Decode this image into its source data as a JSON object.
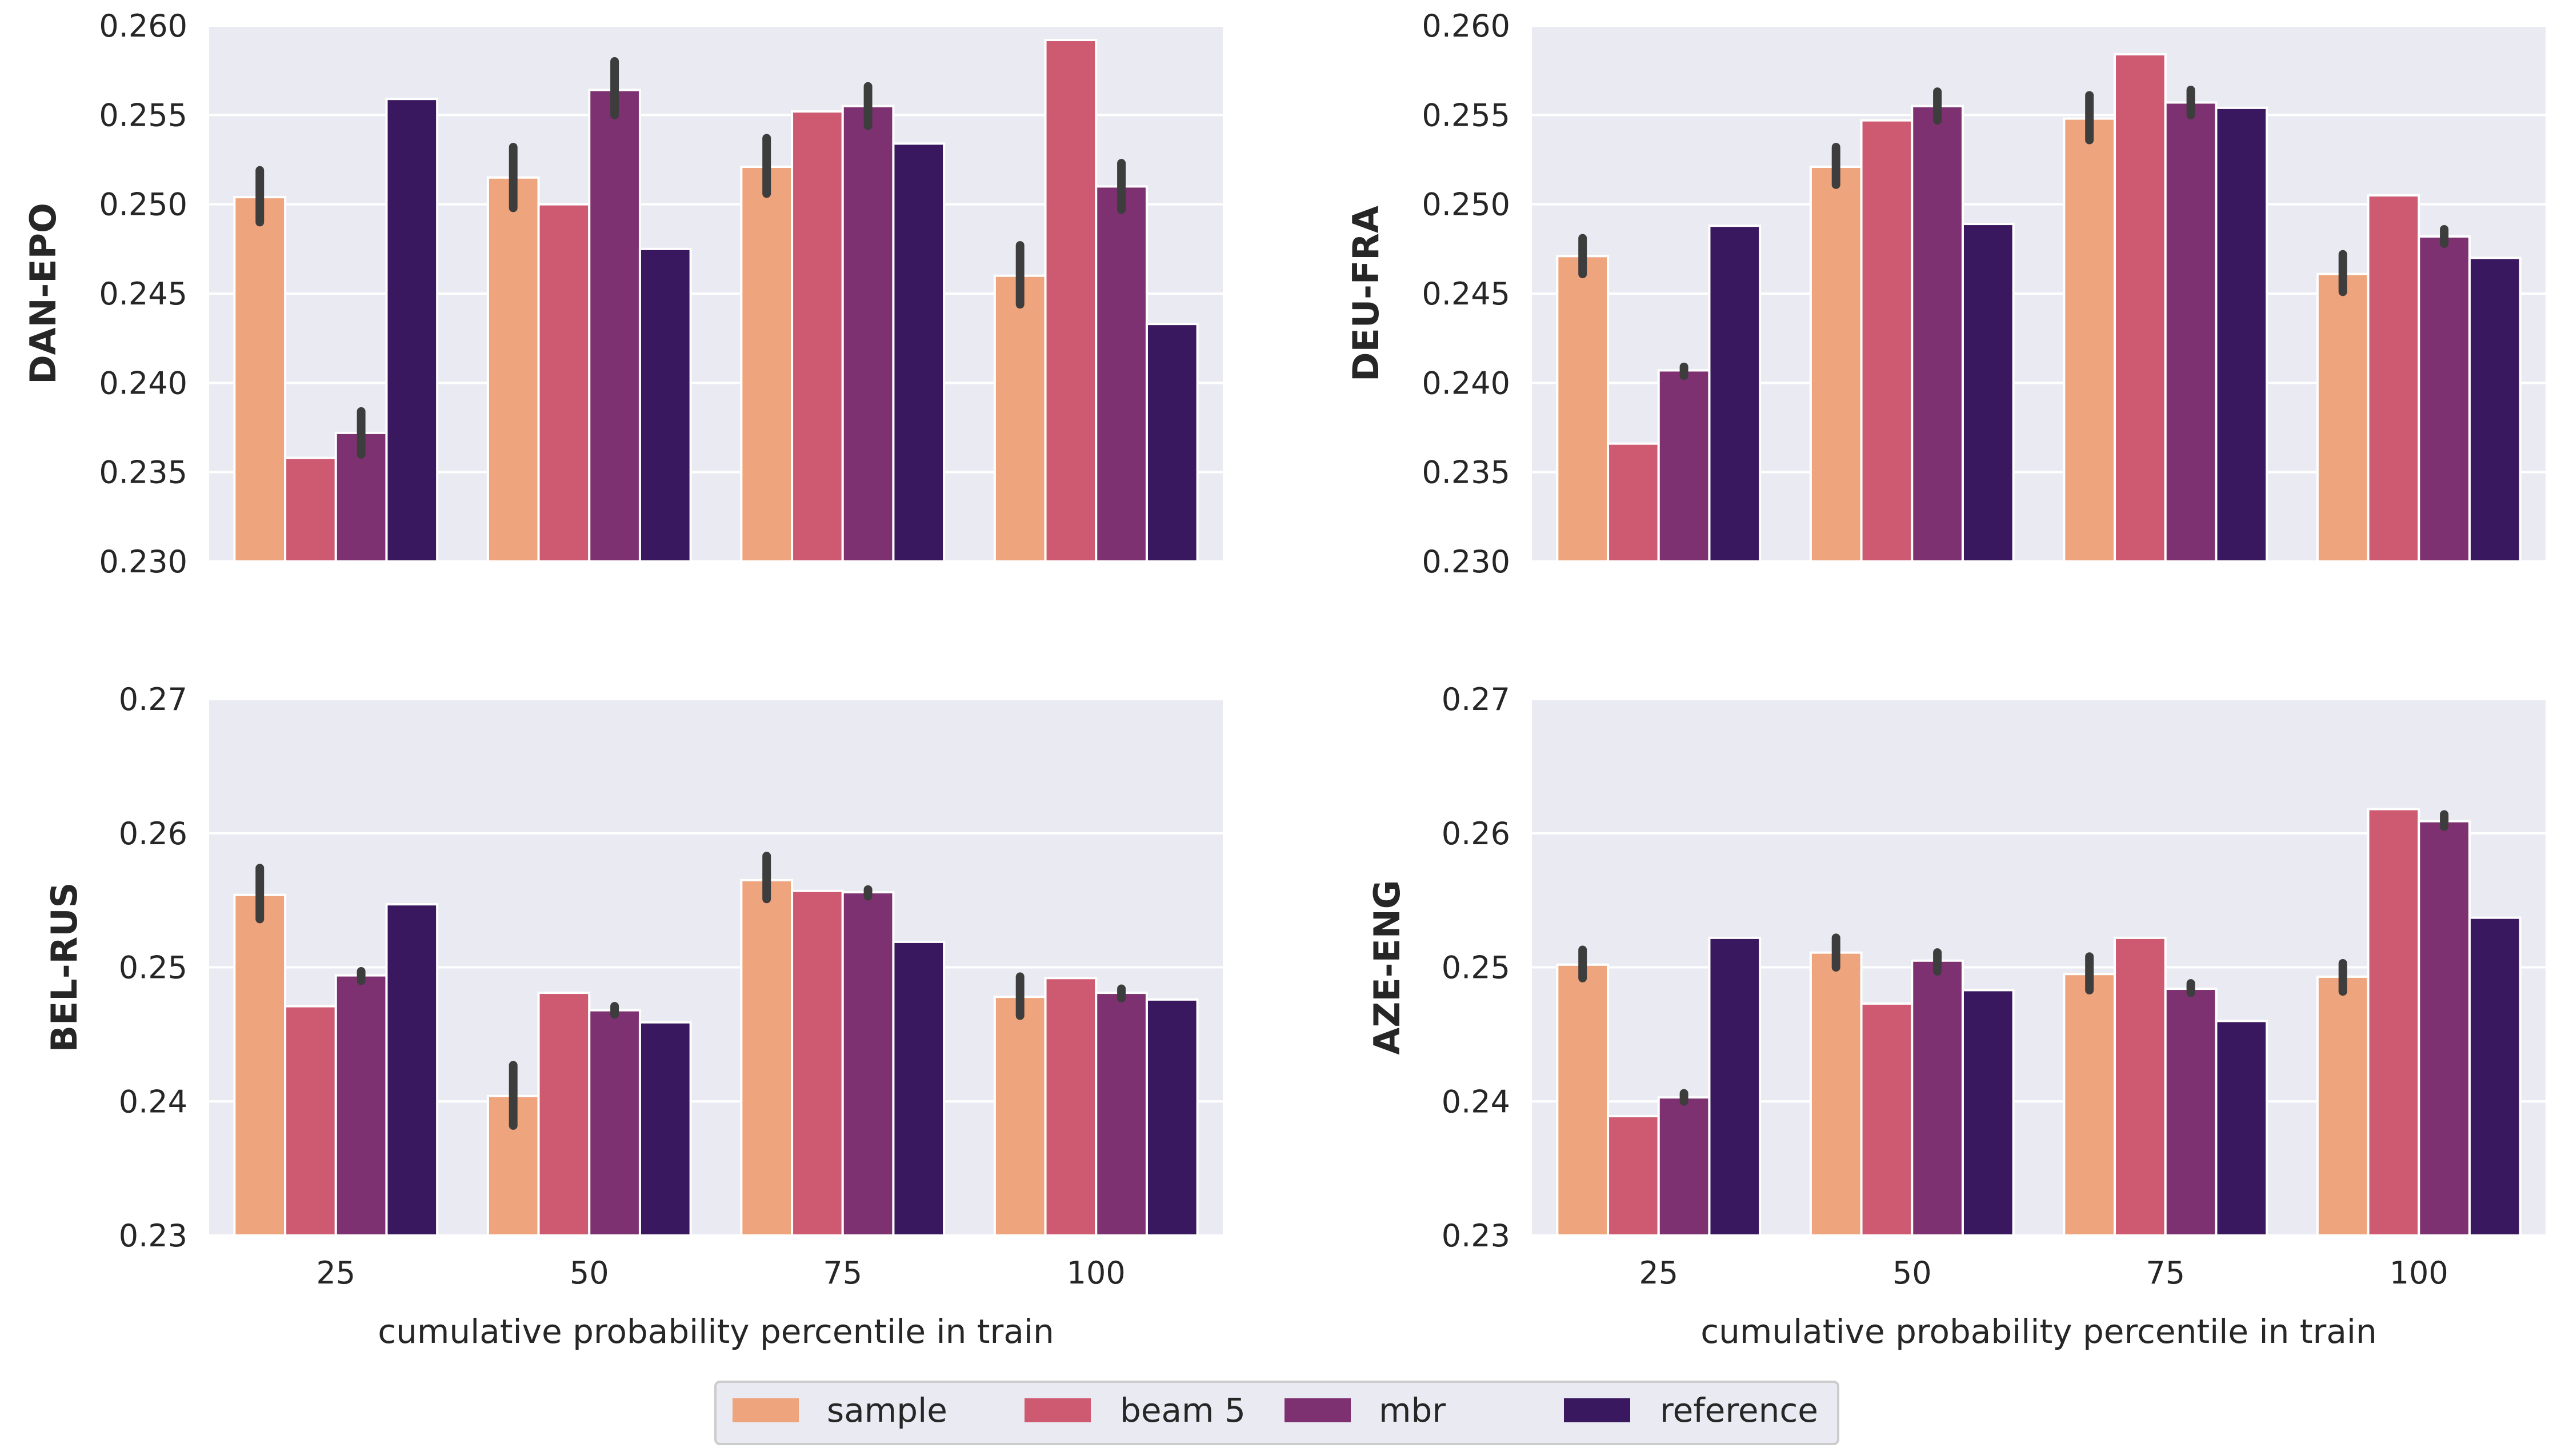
{
  "legend": [
    "sample",
    "beam 5",
    "mbr",
    "reference"
  ],
  "colors": {
    "sample": "#eea47c",
    "beam 5": "#cd5a70",
    "mbr": "#7e3170",
    "reference": "#3a185f",
    "panel_bg": "#eaeaf2",
    "errorbar": "#3d3d3d"
  },
  "chart_data": [
    {
      "type": "bar",
      "panel": "top-left",
      "ylabel": "DAN-EPO",
      "xlabel": "",
      "categories": [
        "25",
        "50",
        "75",
        "100"
      ],
      "ylim": [
        0.23,
        0.26
      ],
      "yticks": [
        0.23,
        0.235,
        0.24,
        0.245,
        0.25,
        0.255,
        0.26
      ],
      "yticklabels": [
        "0.230",
        "0.235",
        "0.240",
        "0.245",
        "0.250",
        "0.255",
        "0.260"
      ],
      "show_xticklabels": false,
      "series": [
        {
          "name": "sample",
          "values": [
            0.2504,
            0.2515,
            0.2521,
            0.246
          ],
          "err": [
            [
              0.249,
              0.2519
            ],
            [
              0.2498,
              0.2532
            ],
            [
              0.2506,
              0.2537
            ],
            [
              0.2444,
              0.2477
            ]
          ]
        },
        {
          "name": "beam 5",
          "values": [
            0.2358,
            0.25,
            0.2552,
            0.2592
          ],
          "err": null
        },
        {
          "name": "mbr",
          "values": [
            0.2372,
            0.2564,
            0.2555,
            0.251
          ],
          "err": [
            [
              0.236,
              0.2384
            ],
            [
              0.255,
              0.258
            ],
            [
              0.2544,
              0.2566
            ],
            [
              0.2497,
              0.2523
            ]
          ]
        },
        {
          "name": "reference",
          "values": [
            0.2559,
            0.2475,
            0.2534,
            0.2433
          ],
          "err": null
        }
      ]
    },
    {
      "type": "bar",
      "panel": "top-right",
      "ylabel": "DEU-FRA",
      "xlabel": "",
      "categories": [
        "25",
        "50",
        "75",
        "100"
      ],
      "ylim": [
        0.23,
        0.26
      ],
      "yticks": [
        0.23,
        0.235,
        0.24,
        0.245,
        0.25,
        0.255,
        0.26
      ],
      "yticklabels": [
        "0.230",
        "0.235",
        "0.240",
        "0.245",
        "0.250",
        "0.255",
        "0.260"
      ],
      "show_xticklabels": false,
      "series": [
        {
          "name": "sample",
          "values": [
            0.2471,
            0.2521,
            0.2548,
            0.2461
          ],
          "err": [
            [
              0.2461,
              0.2481
            ],
            [
              0.2511,
              0.2532
            ],
            [
              0.2536,
              0.2561
            ],
            [
              0.2451,
              0.2472
            ]
          ]
        },
        {
          "name": "beam 5",
          "values": [
            0.2366,
            0.2547,
            0.2584,
            0.2505
          ],
          "err": null
        },
        {
          "name": "mbr",
          "values": [
            0.2407,
            0.2555,
            0.2557,
            0.2482
          ],
          "err": [
            [
              0.2404,
              0.2409
            ],
            [
              0.2547,
              0.2563
            ],
            [
              0.255,
              0.2564
            ],
            [
              0.2478,
              0.2486
            ]
          ]
        },
        {
          "name": "reference",
          "values": [
            0.2488,
            0.2489,
            0.2554,
            0.247
          ],
          "err": null
        }
      ]
    },
    {
      "type": "bar",
      "panel": "bottom-left",
      "ylabel": "BEL-RUS",
      "xlabel": "cumulative probability percentile in train",
      "categories": [
        "25",
        "50",
        "75",
        "100"
      ],
      "ylim": [
        0.23,
        0.27
      ],
      "yticks": [
        0.23,
        0.24,
        0.25,
        0.26,
        0.27
      ],
      "yticklabels": [
        "0.23",
        "0.24",
        "0.25",
        "0.26",
        "0.27"
      ],
      "show_xticklabels": true,
      "series": [
        {
          "name": "sample",
          "values": [
            0.2554,
            0.2404,
            0.2565,
            0.2478
          ],
          "err": [
            [
              0.2536,
              0.2574
            ],
            [
              0.2382,
              0.2427
            ],
            [
              0.2551,
              0.2583
            ],
            [
              0.2464,
              0.2493
            ]
          ]
        },
        {
          "name": "beam 5",
          "values": [
            0.2471,
            0.2481,
            0.2557,
            0.2492
          ],
          "err": null
        },
        {
          "name": "mbr",
          "values": [
            0.2494,
            0.2468,
            0.2556,
            0.2481
          ],
          "err": [
            [
              0.249,
              0.2497
            ],
            [
              0.2465,
              0.2471
            ],
            [
              0.2553,
              0.2558
            ],
            [
              0.2477,
              0.2484
            ]
          ]
        },
        {
          "name": "reference",
          "values": [
            0.2547,
            0.2459,
            0.2519,
            0.2476
          ],
          "err": null
        }
      ]
    },
    {
      "type": "bar",
      "panel": "bottom-right",
      "ylabel": "AZE-ENG",
      "xlabel": "cumulative probability percentile in train",
      "categories": [
        "25",
        "50",
        "75",
        "100"
      ],
      "ylim": [
        0.23,
        0.27
      ],
      "yticks": [
        0.23,
        0.24,
        0.25,
        0.26,
        0.27
      ],
      "yticklabels": [
        "0.23",
        "0.24",
        "0.25",
        "0.26",
        "0.27"
      ],
      "show_xticklabels": true,
      "series": [
        {
          "name": "sample",
          "values": [
            0.2502,
            0.2511,
            0.2495,
            0.2493
          ],
          "err": [
            [
              0.2492,
              0.2513
            ],
            [
              0.25,
              0.2522
            ],
            [
              0.2483,
              0.2508
            ],
            [
              0.2482,
              0.2503
            ]
          ]
        },
        {
          "name": "beam 5",
          "values": [
            0.2389,
            0.2473,
            0.2522,
            0.2618
          ],
          "err": null
        },
        {
          "name": "mbr",
          "values": [
            0.2403,
            0.2505,
            0.2484,
            0.2609
          ],
          "err": [
            [
              0.24,
              0.2406
            ],
            [
              0.2497,
              0.2511
            ],
            [
              0.2481,
              0.2488
            ],
            [
              0.2605,
              0.2614
            ]
          ]
        },
        {
          "name": "reference",
          "values": [
            0.2522,
            0.2483,
            0.246,
            0.2537
          ],
          "err": null
        }
      ]
    }
  ]
}
